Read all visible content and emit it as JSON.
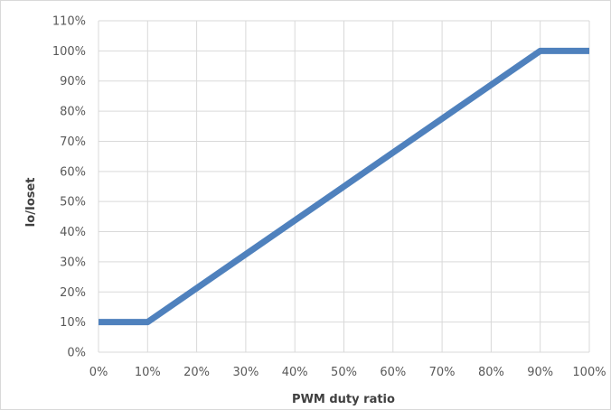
{
  "chart_data": {
    "type": "line",
    "title": "",
    "xlabel": "PWM duty ratio",
    "ylabel": "Io/Ioset",
    "xlim": [
      0,
      100
    ],
    "ylim": [
      0,
      110
    ],
    "x_ticks": [
      "0%",
      "10%",
      "20%",
      "30%",
      "40%",
      "50%",
      "60%",
      "70%",
      "80%",
      "90%",
      "100%"
    ],
    "y_ticks": [
      "0%",
      "10%",
      "20%",
      "30%",
      "40%",
      "50%",
      "60%",
      "70%",
      "80%",
      "90%",
      "100%",
      "110%"
    ],
    "grid": true,
    "legend": "none",
    "series": [
      {
        "x": [
          0,
          10,
          90,
          100
        ],
        "y": [
          10,
          10,
          100,
          100
        ],
        "color": "#4f81bd"
      }
    ]
  }
}
